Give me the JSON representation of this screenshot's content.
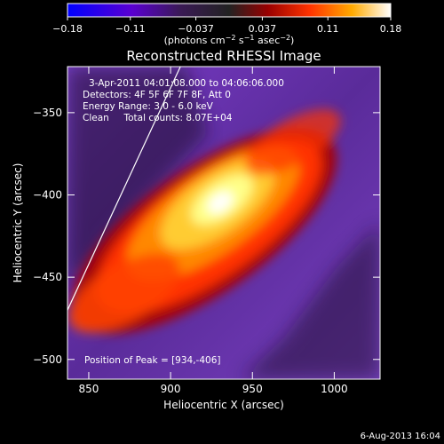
{
  "chart_data": {
    "type": "heatmap",
    "title": "Reconstructed RHESSI Image",
    "xlabel": "Heliocentric X (arcsec)",
    "ylabel": "Heliocentric Y (arcsec)",
    "xlim": [
      837,
      1028
    ],
    "ylim": [
      -512,
      -322
    ],
    "x_ticks": [
      850,
      900,
      950,
      1000
    ],
    "y_ticks": [
      -350,
      -400,
      -450,
      -500
    ],
    "x_tick_labels": [
      "850",
      "900",
      "950",
      "1000"
    ],
    "y_tick_labels": [
      "−350",
      "−400",
      "−450",
      "−500"
    ],
    "colorbar": {
      "range": [
        -0.18,
        0.18
      ],
      "ticks": [
        -0.18,
        -0.11,
        -0.037,
        0.037,
        0.11,
        0.18
      ],
      "tick_labels": [
        "−0.18",
        "−0.11",
        "−0.037",
        "0.037",
        "0.11",
        "0.18"
      ],
      "units_prefix": "(photons cm",
      "units_exp1": "−2",
      "units_mid": " s",
      "units_exp2": "−1",
      "units_mid2": " asec",
      "units_exp3": "−2",
      "units_suffix": ")",
      "colors": [
        "#0000ff",
        "#5500cc",
        "#222222",
        "#880000",
        "#ff3300",
        "#ff9900",
        "#ffff88",
        "#ffffff"
      ]
    },
    "peak": {
      "x": 934,
      "y": -406
    },
    "limb_line": [
      [
        837,
        -470
      ],
      [
        906,
        -322
      ]
    ],
    "annotations": [
      "3-Apr-2011 04:01:08.000 to 04:06:06.000",
      "Detectors: 4F 5F 6F 7F 8F, Att 0",
      "Energy Range: 3.0 - 6.0 keV",
      "Clean     Total counts: 8.07E+04"
    ],
    "peak_label": "Position of Peak = [934,-406]"
  },
  "footer": {
    "date": "6-Aug-2013 16:04"
  }
}
